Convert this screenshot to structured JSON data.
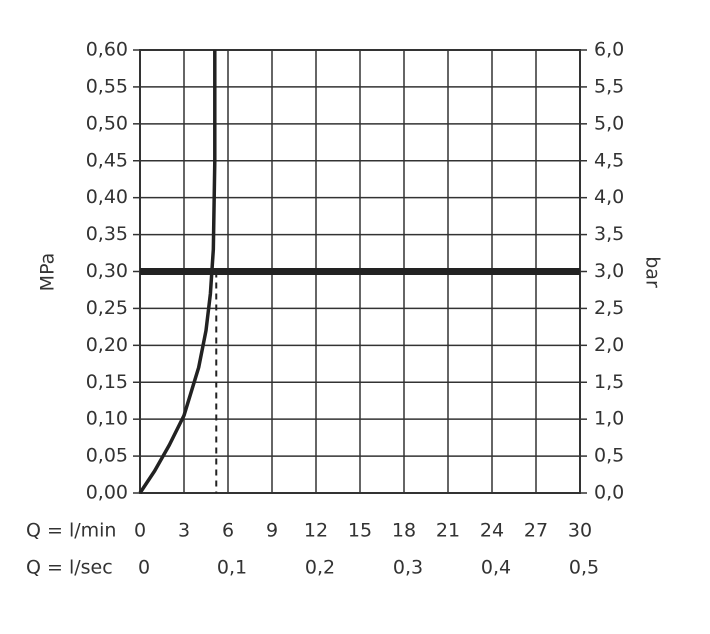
{
  "chart_data": {
    "type": "line",
    "y_label": "MPa",
    "y2_label": "bar",
    "x_label": "Q = l/min",
    "x2_label": "Q = l/sec",
    "x": [
      0,
      1,
      2,
      3,
      4,
      4.5,
      4.8,
      5.0,
      5.1,
      5.1
    ],
    "series": [
      {
        "color": "#222222",
        "values": [
          0,
          0.03,
          0.065,
          0.105,
          0.17,
          0.22,
          0.27,
          0.33,
          0.45,
          0.6
        ]
      }
    ],
    "reference_y": 0.3,
    "reference_x": 5.2,
    "xlim": [
      0,
      30
    ],
    "xticks": [
      0,
      3,
      6,
      9,
      12,
      15,
      18,
      21,
      24,
      27,
      30
    ],
    "x2lim": [
      0,
      0.5
    ],
    "x2ticks": [
      0,
      {
        "value": 0.1,
        "label": "0,1"
      },
      {
        "value": 0.2,
        "label": "0,2"
      },
      {
        "value": 0.3,
        "label": "0,3"
      },
      {
        "value": 0.4,
        "label": "0,4"
      },
      {
        "value": 0.5,
        "label": "0,5"
      }
    ],
    "ylim": [
      0,
      0.6
    ],
    "yticks": [
      {
        "value": 0,
        "label": "0,00"
      },
      {
        "value": 0.05,
        "label": "0,05"
      },
      {
        "value": 0.1,
        "label": "0,10"
      },
      {
        "value": 0.15,
        "label": "0,15"
      },
      {
        "value": 0.2,
        "label": "0,20"
      },
      {
        "value": 0.25,
        "label": "0,25"
      },
      {
        "value": 0.3,
        "label": "0,30"
      },
      {
        "value": 0.35,
        "label": "0,35"
      },
      {
        "value": 0.4,
        "label": "0,40"
      },
      {
        "value": 0.45,
        "label": "0,45"
      },
      {
        "value": 0.5,
        "label": "0,50"
      },
      {
        "value": 0.55,
        "label": "0,55"
      },
      {
        "value": 0.6,
        "label": "0,60"
      }
    ],
    "y2lim": [
      0,
      6
    ],
    "y2ticks": [
      {
        "value": 0,
        "label": "0,0"
      },
      {
        "value": 0.5,
        "label": "0,5"
      },
      {
        "value": 1,
        "label": "1,0"
      },
      {
        "value": 1.5,
        "label": "1,5"
      },
      {
        "value": 2,
        "label": "2,0"
      },
      {
        "value": 2.5,
        "label": "2,5"
      },
      {
        "value": 3,
        "label": "3,0"
      },
      {
        "value": 3.5,
        "label": "3,5"
      },
      {
        "value": 4,
        "label": "4,0"
      },
      {
        "value": 4.5,
        "label": "4,5"
      },
      {
        "value": 5,
        "label": "5,0"
      },
      {
        "value": 5.5,
        "label": "5,5"
      },
      {
        "value": 6,
        "label": "6,0"
      }
    ],
    "grid": true
  }
}
